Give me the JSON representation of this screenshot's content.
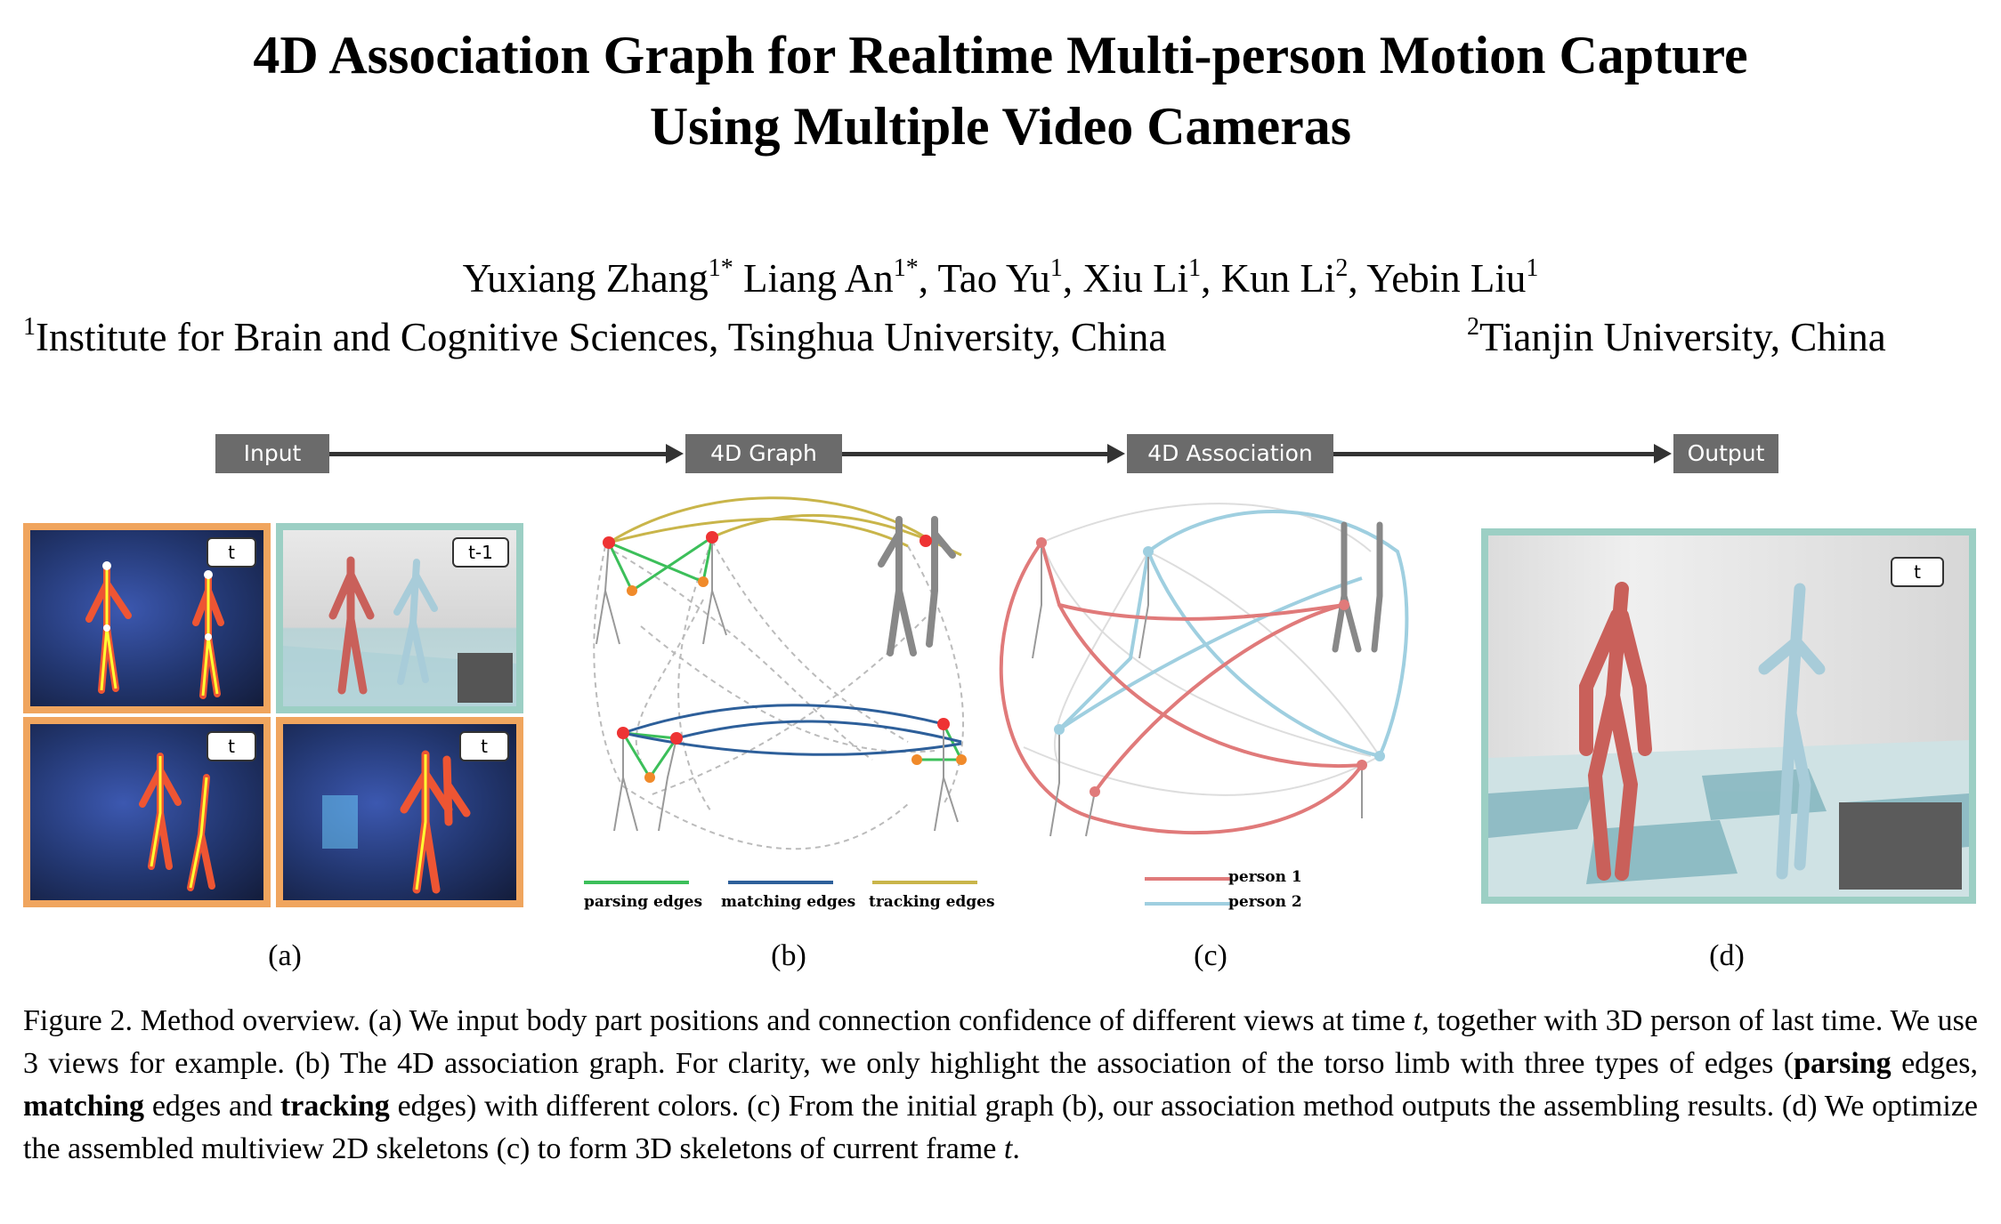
{
  "title": {
    "line1": "4D Association Graph for Realtime Multi-person Motion Capture",
    "line2": "Using Multiple Video Cameras"
  },
  "authors": [
    {
      "name": "Yuxiang Zhang",
      "sup": "1",
      "mark": "*",
      "sep": " "
    },
    {
      "name": "Liang An",
      "sup": "1",
      "mark": "*",
      "sep": ", "
    },
    {
      "name": "Tao Yu",
      "sup": "1",
      "mark": "",
      "sep": ", "
    },
    {
      "name": "Xiu Li",
      "sup": "1",
      "mark": "",
      "sep": ", "
    },
    {
      "name": "Kun Li",
      "sup": "2",
      "mark": "",
      "sep": ", "
    },
    {
      "name": "Yebin Liu",
      "sup": "1",
      "mark": "",
      "sep": ""
    }
  ],
  "affiliations": [
    {
      "sup": "1",
      "text": "Institute for Brain and Cognitive Sciences, Tsinghua University, China"
    },
    {
      "sup": "2",
      "text": "Tianjin University, China"
    }
  ],
  "pipeline": {
    "stages": [
      "Input",
      "4D Graph",
      "4D Association",
      "Output"
    ]
  },
  "panel_a": {
    "tags": [
      "t",
      "t-1",
      "t",
      "t"
    ]
  },
  "panel_b": {
    "legend": [
      "parsing edges",
      "matching edges",
      "tracking edges"
    ]
  },
  "panel_c": {
    "legend": [
      "person 1",
      "person 2"
    ]
  },
  "panel_d": {
    "tag": "t"
  },
  "sublabels": [
    "(a)",
    "(b)",
    "(c)",
    "(d)"
  ],
  "colors": {
    "parsing": "#3cbf5a",
    "matching": "#2d5f9a",
    "tracking": "#c9b54a",
    "person1": "#e07a7a",
    "person2": "#9fcfe0",
    "orange_border": "#f0a55e",
    "teal_border": "#9ccfc4"
  },
  "caption": {
    "p1": "Figure 2. Method overview.  (a) We input body part positions and connection confidence of different views at time ",
    "var_t": "t",
    "p2": ", together with 3D person of last time. We use 3 views for example. (b) The 4D association graph. For clarity, we only highlight the association of the torso limb with three types of edges (",
    "b1": "parsing",
    "p3": " edges, ",
    "b2": "matching",
    "p4": " edges and ",
    "b3": "tracking",
    "p5": " edges) with different colors. (c) From the initial graph (b), our association method outputs the assembling results. (d) We optimize the assembled multiview 2D skeletons (c) to form 3D skeletons of current frame ",
    "p6": "."
  }
}
